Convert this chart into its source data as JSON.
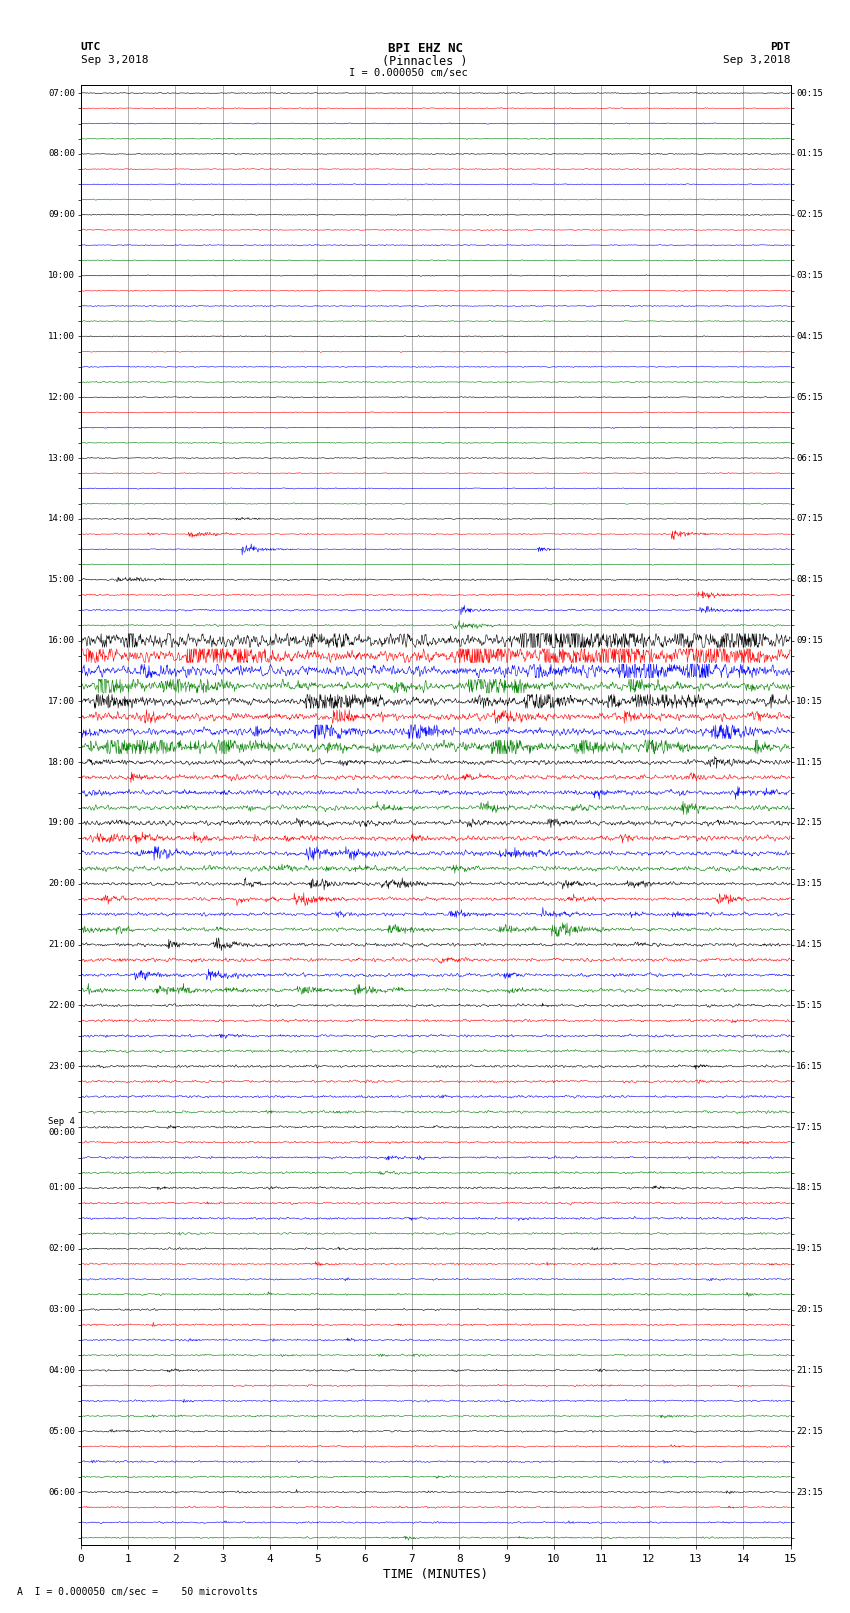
{
  "title_line1": "BPI EHZ NC",
  "title_line2": "(Pinnacles )",
  "scale_label": "I = 0.000050 cm/sec",
  "left_label_top": "UTC",
  "left_label_date": "Sep 3,2018",
  "right_label_top": "PDT",
  "right_label_date": "Sep 3,2018",
  "bottom_label": "TIME (MINUTES)",
  "bottom_note": "A  I = 0.000050 cm/sec =    50 microvolts",
  "utc_times": [
    "07:00",
    "",
    "",
    "",
    "08:00",
    "",
    "",
    "",
    "09:00",
    "",
    "",
    "",
    "10:00",
    "",
    "",
    "",
    "11:00",
    "",
    "",
    "",
    "12:00",
    "",
    "",
    "",
    "13:00",
    "",
    "",
    "",
    "14:00",
    "",
    "",
    "",
    "15:00",
    "",
    "",
    "",
    "16:00",
    "",
    "",
    "",
    "17:00",
    "",
    "",
    "",
    "18:00",
    "",
    "",
    "",
    "19:00",
    "",
    "",
    "",
    "20:00",
    "",
    "",
    "",
    "21:00",
    "",
    "",
    "",
    "22:00",
    "",
    "",
    "",
    "23:00",
    "",
    "",
    "",
    "Sep 4\n00:00",
    "",
    "",
    "",
    "01:00",
    "",
    "",
    "",
    "02:00",
    "",
    "",
    "",
    "03:00",
    "",
    "",
    "",
    "04:00",
    "",
    "",
    "",
    "05:00",
    "",
    "",
    "",
    "06:00",
    "",
    "",
    ""
  ],
  "pdt_times": [
    "00:15",
    "",
    "",
    "",
    "01:15",
    "",
    "",
    "",
    "02:15",
    "",
    "",
    "",
    "03:15",
    "",
    "",
    "",
    "04:15",
    "",
    "",
    "",
    "05:15",
    "",
    "",
    "",
    "06:15",
    "",
    "",
    "",
    "07:15",
    "",
    "",
    "",
    "08:15",
    "",
    "",
    "",
    "09:15",
    "",
    "",
    "",
    "10:15",
    "",
    "",
    "",
    "11:15",
    "",
    "",
    "",
    "12:15",
    "",
    "",
    "",
    "13:15",
    "",
    "",
    "",
    "14:15",
    "",
    "",
    "",
    "15:15",
    "",
    "",
    "",
    "16:15",
    "",
    "",
    "",
    "17:15",
    "",
    "",
    "",
    "18:15",
    "",
    "",
    "",
    "19:15",
    "",
    "",
    "",
    "20:15",
    "",
    "",
    "",
    "21:15",
    "",
    "",
    "",
    "22:15",
    "",
    "",
    "",
    "23:15",
    "",
    "",
    ""
  ],
  "n_rows": 96,
  "n_cols": 15,
  "colors_cycle": [
    "black",
    "red",
    "blue",
    "green"
  ],
  "bg_color": "white",
  "grid_color": "#777777"
}
